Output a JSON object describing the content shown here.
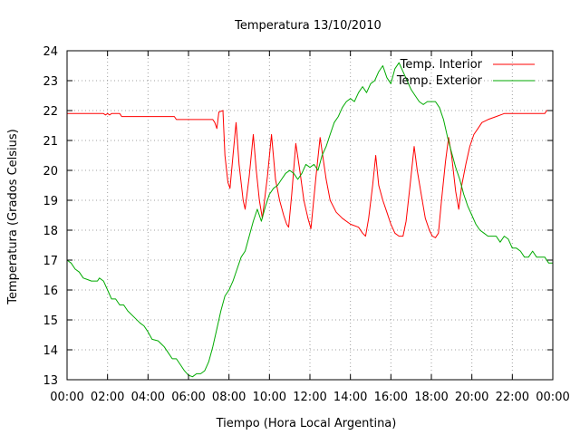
{
  "chart_data": {
    "type": "line",
    "title": "Temperatura 13/10/2010",
    "xlabel": "Tiempo (Hora Local Argentina)",
    "ylabel": "Temperatura (Grados Celsius)",
    "xlim": [
      0,
      24
    ],
    "ylim": [
      13,
      24
    ],
    "x_ticks": [
      0,
      2,
      4,
      6,
      8,
      10,
      12,
      14,
      16,
      18,
      20,
      22,
      24
    ],
    "x_tick_labels": [
      "00:00",
      "02:00",
      "04:00",
      "06:00",
      "08:00",
      "10:00",
      "12:00",
      "14:00",
      "16:00",
      "18:00",
      "20:00",
      "22:00",
      "00:00"
    ],
    "y_ticks": [
      13,
      14,
      15,
      16,
      17,
      18,
      19,
      20,
      21,
      22,
      23,
      24
    ],
    "grid": true,
    "legend_position": "top-right",
    "series": [
      {
        "name": "Temp. Interior",
        "color": "#ff0000",
        "points": [
          [
            0.0,
            21.9
          ],
          [
            1.0,
            21.9
          ],
          [
            1.8,
            21.9
          ],
          [
            1.9,
            21.85
          ],
          [
            2.0,
            21.9
          ],
          [
            2.1,
            21.85
          ],
          [
            2.2,
            21.9
          ],
          [
            2.6,
            21.9
          ],
          [
            2.7,
            21.8
          ],
          [
            4.0,
            21.8
          ],
          [
            5.3,
            21.8
          ],
          [
            5.4,
            21.7
          ],
          [
            6.8,
            21.7
          ],
          [
            7.2,
            21.7
          ],
          [
            7.3,
            21.6
          ],
          [
            7.4,
            21.4
          ],
          [
            7.5,
            21.95
          ],
          [
            7.7,
            22.0
          ],
          [
            7.8,
            20.5
          ],
          [
            7.95,
            19.6
          ],
          [
            8.05,
            19.4
          ],
          [
            8.2,
            20.5
          ],
          [
            8.35,
            21.6
          ],
          [
            8.5,
            20.2
          ],
          [
            8.7,
            19.0
          ],
          [
            8.8,
            18.7
          ],
          [
            9.0,
            19.8
          ],
          [
            9.2,
            21.2
          ],
          [
            9.35,
            20.0
          ],
          [
            9.5,
            19.0
          ],
          [
            9.65,
            18.4
          ],
          [
            9.9,
            19.8
          ],
          [
            10.1,
            21.2
          ],
          [
            10.3,
            19.7
          ],
          [
            10.5,
            19.0
          ],
          [
            10.7,
            18.5
          ],
          [
            10.85,
            18.2
          ],
          [
            10.95,
            18.1
          ],
          [
            11.1,
            19.2
          ],
          [
            11.3,
            20.9
          ],
          [
            11.5,
            20.0
          ],
          [
            11.7,
            19.0
          ],
          [
            11.9,
            18.4
          ],
          [
            12.05,
            18.05
          ],
          [
            12.3,
            19.8
          ],
          [
            12.5,
            21.1
          ],
          [
            12.8,
            19.7
          ],
          [
            13.0,
            19.0
          ],
          [
            13.3,
            18.6
          ],
          [
            13.6,
            18.4
          ],
          [
            14.0,
            18.2
          ],
          [
            14.4,
            18.1
          ],
          [
            14.6,
            17.9
          ],
          [
            14.75,
            17.8
          ],
          [
            14.9,
            18.4
          ],
          [
            15.1,
            19.5
          ],
          [
            15.25,
            20.5
          ],
          [
            15.4,
            19.5
          ],
          [
            15.6,
            19.0
          ],
          [
            15.8,
            18.6
          ],
          [
            16.0,
            18.2
          ],
          [
            16.2,
            17.9
          ],
          [
            16.4,
            17.8
          ],
          [
            16.6,
            17.8
          ],
          [
            16.75,
            18.3
          ],
          [
            16.95,
            19.5
          ],
          [
            17.15,
            20.8
          ],
          [
            17.3,
            20.0
          ],
          [
            17.5,
            19.2
          ],
          [
            17.7,
            18.4
          ],
          [
            17.9,
            18.0
          ],
          [
            18.05,
            17.8
          ],
          [
            18.2,
            17.75
          ],
          [
            18.35,
            17.9
          ],
          [
            18.5,
            19.0
          ],
          [
            18.7,
            20.3
          ],
          [
            18.85,
            21.1
          ],
          [
            19.0,
            20.5
          ],
          [
            19.2,
            19.3
          ],
          [
            19.35,
            18.7
          ],
          [
            19.5,
            19.5
          ],
          [
            19.7,
            20.2
          ],
          [
            19.9,
            20.8
          ],
          [
            20.1,
            21.2
          ],
          [
            20.3,
            21.4
          ],
          [
            20.5,
            21.6
          ],
          [
            20.8,
            21.7
          ],
          [
            21.2,
            21.8
          ],
          [
            21.6,
            21.9
          ],
          [
            22.0,
            21.9
          ],
          [
            23.0,
            21.9
          ],
          [
            23.6,
            21.9
          ],
          [
            23.7,
            22.0
          ],
          [
            24.0,
            22.0
          ]
        ]
      },
      {
        "name": "Temp. Exterior",
        "color": "#00aa00",
        "points": [
          [
            0.0,
            17.0
          ],
          [
            0.2,
            16.9
          ],
          [
            0.4,
            16.7
          ],
          [
            0.6,
            16.6
          ],
          [
            0.8,
            16.4
          ],
          [
            1.0,
            16.35
          ],
          [
            1.2,
            16.3
          ],
          [
            1.5,
            16.3
          ],
          [
            1.6,
            16.4
          ],
          [
            1.8,
            16.3
          ],
          [
            2.0,
            16.0
          ],
          [
            2.2,
            15.7
          ],
          [
            2.4,
            15.7
          ],
          [
            2.6,
            15.5
          ],
          [
            2.8,
            15.5
          ],
          [
            3.0,
            15.3
          ],
          [
            3.3,
            15.1
          ],
          [
            3.6,
            14.9
          ],
          [
            3.8,
            14.8
          ],
          [
            4.0,
            14.6
          ],
          [
            4.2,
            14.35
          ],
          [
            4.5,
            14.3
          ],
          [
            4.8,
            14.1
          ],
          [
            5.0,
            13.9
          ],
          [
            5.2,
            13.7
          ],
          [
            5.4,
            13.7
          ],
          [
            5.6,
            13.5
          ],
          [
            5.8,
            13.3
          ],
          [
            6.0,
            13.15
          ],
          [
            6.2,
            13.1
          ],
          [
            6.4,
            13.2
          ],
          [
            6.6,
            13.2
          ],
          [
            6.8,
            13.3
          ],
          [
            7.0,
            13.6
          ],
          [
            7.2,
            14.1
          ],
          [
            7.4,
            14.7
          ],
          [
            7.6,
            15.3
          ],
          [
            7.8,
            15.8
          ],
          [
            8.0,
            16.0
          ],
          [
            8.2,
            16.3
          ],
          [
            8.4,
            16.7
          ],
          [
            8.6,
            17.1
          ],
          [
            8.8,
            17.3
          ],
          [
            9.0,
            17.8
          ],
          [
            9.2,
            18.3
          ],
          [
            9.4,
            18.7
          ],
          [
            9.6,
            18.3
          ],
          [
            9.8,
            18.8
          ],
          [
            10.0,
            19.2
          ],
          [
            10.2,
            19.4
          ],
          [
            10.4,
            19.5
          ],
          [
            10.6,
            19.7
          ],
          [
            10.8,
            19.9
          ],
          [
            11.0,
            20.0
          ],
          [
            11.2,
            19.9
          ],
          [
            11.4,
            19.7
          ],
          [
            11.6,
            19.9
          ],
          [
            11.8,
            20.2
          ],
          [
            12.0,
            20.1
          ],
          [
            12.2,
            20.2
          ],
          [
            12.4,
            20.0
          ],
          [
            12.6,
            20.5
          ],
          [
            12.8,
            20.8
          ],
          [
            13.0,
            21.2
          ],
          [
            13.2,
            21.6
          ],
          [
            13.4,
            21.8
          ],
          [
            13.6,
            22.1
          ],
          [
            13.8,
            22.3
          ],
          [
            14.0,
            22.4
          ],
          [
            14.2,
            22.3
          ],
          [
            14.4,
            22.6
          ],
          [
            14.6,
            22.8
          ],
          [
            14.8,
            22.6
          ],
          [
            15.0,
            22.9
          ],
          [
            15.2,
            23.0
          ],
          [
            15.4,
            23.3
          ],
          [
            15.6,
            23.5
          ],
          [
            15.8,
            23.1
          ],
          [
            16.0,
            22.9
          ],
          [
            16.2,
            23.4
          ],
          [
            16.4,
            23.6
          ],
          [
            16.6,
            23.3
          ],
          [
            16.8,
            23.0
          ],
          [
            17.0,
            22.7
          ],
          [
            17.2,
            22.5
          ],
          [
            17.4,
            22.3
          ],
          [
            17.6,
            22.2
          ],
          [
            17.8,
            22.3
          ],
          [
            18.0,
            22.3
          ],
          [
            18.2,
            22.3
          ],
          [
            18.4,
            22.1
          ],
          [
            18.6,
            21.7
          ],
          [
            18.8,
            21.1
          ],
          [
            19.0,
            20.6
          ],
          [
            19.2,
            20.1
          ],
          [
            19.4,
            19.7
          ],
          [
            19.6,
            19.2
          ],
          [
            19.8,
            18.8
          ],
          [
            20.0,
            18.5
          ],
          [
            20.2,
            18.2
          ],
          [
            20.4,
            18.0
          ],
          [
            20.6,
            17.9
          ],
          [
            20.8,
            17.8
          ],
          [
            21.0,
            17.8
          ],
          [
            21.2,
            17.8
          ],
          [
            21.4,
            17.6
          ],
          [
            21.6,
            17.8
          ],
          [
            21.8,
            17.7
          ],
          [
            22.0,
            17.4
          ],
          [
            22.2,
            17.4
          ],
          [
            22.4,
            17.3
          ],
          [
            22.6,
            17.1
          ],
          [
            22.8,
            17.1
          ],
          [
            23.0,
            17.3
          ],
          [
            23.2,
            17.1
          ],
          [
            23.4,
            17.1
          ],
          [
            23.6,
            17.1
          ],
          [
            23.8,
            16.9
          ],
          [
            24.0,
            16.9
          ]
        ]
      }
    ]
  }
}
